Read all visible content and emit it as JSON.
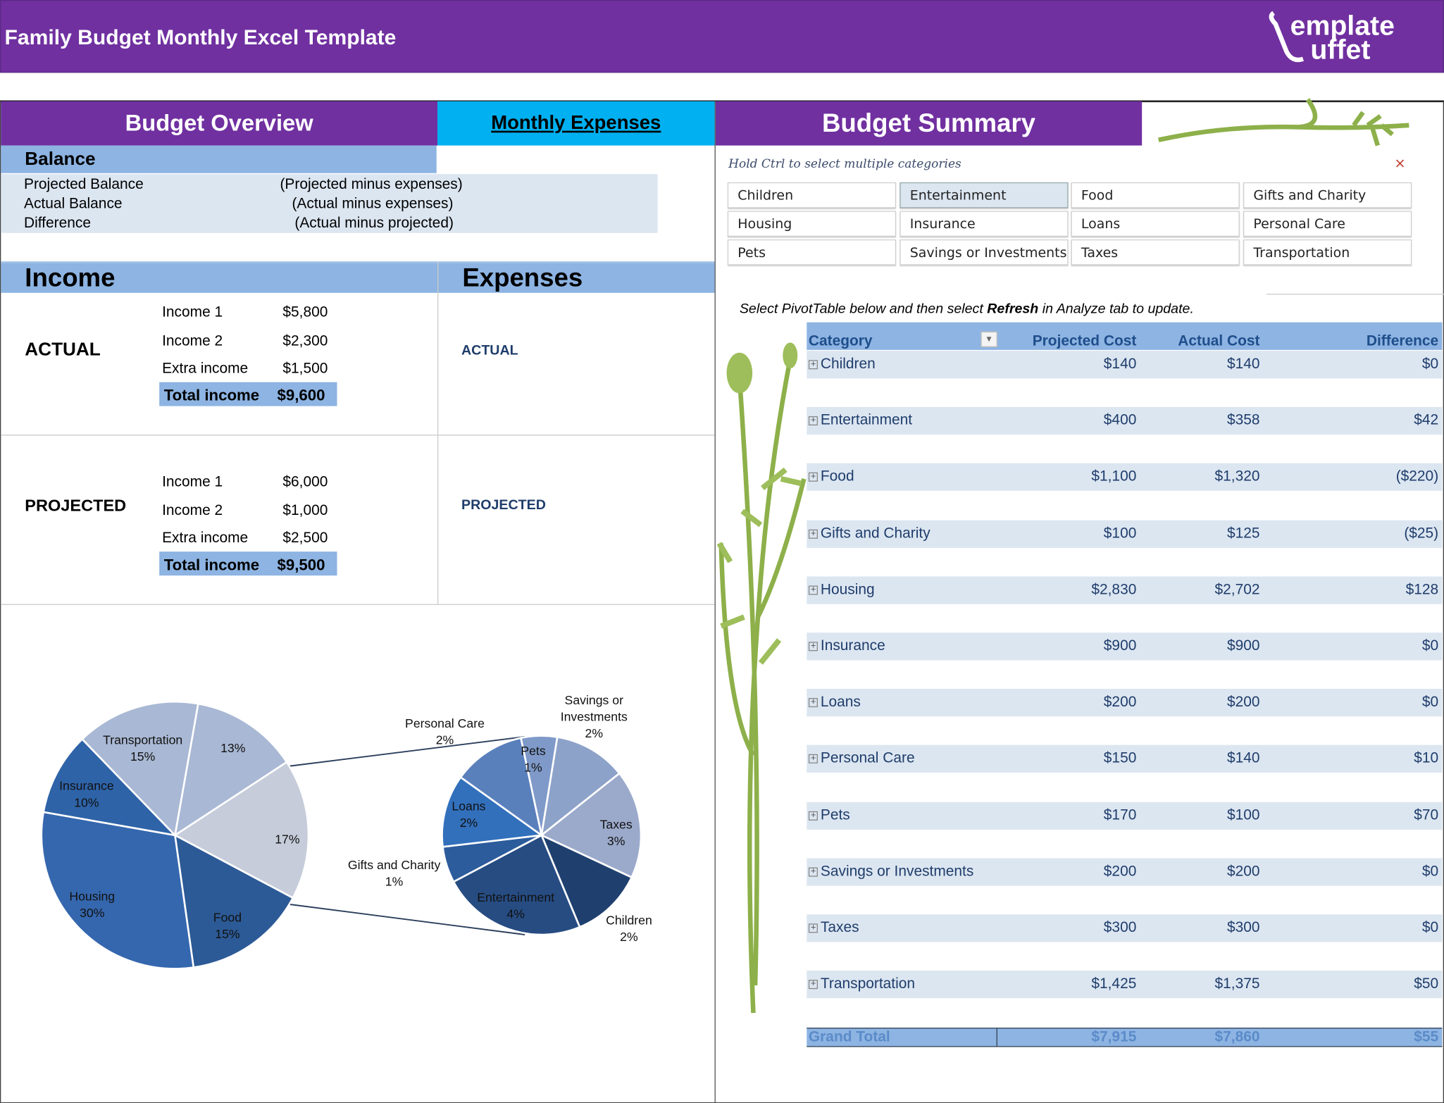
{
  "header": {
    "title": "Family Budget Monthly Excel Template",
    "logo_text": "TemplateBuffet"
  },
  "tabs": {
    "overview": "Budget Overview",
    "monthly": "Monthly Expenses",
    "summary": "Budget Summary"
  },
  "balance": {
    "heading": "Balance",
    "rows": [
      {
        "label": "Projected Balance",
        "note": "(Projected  minus expenses)"
      },
      {
        "label": "Actual Balance",
        "note": "(Actual  minus expenses)"
      },
      {
        "label": "Difference",
        "note": "(Actual minus projected)"
      }
    ]
  },
  "income": {
    "heading": "Income",
    "expenses_heading": "Expenses",
    "actual": {
      "label": "ACTUAL",
      "expenses_label": "ACTUAL",
      "items": [
        {
          "name": "Income 1",
          "value": "$5,800"
        },
        {
          "name": "Income 2",
          "value": "$2,300"
        },
        {
          "name": "Extra income",
          "value": "$1,500"
        }
      ],
      "total_label": "Total income",
      "total": "$9,600"
    },
    "projected": {
      "label": "PROJECTED",
      "expenses_label": "PROJECTED",
      "items": [
        {
          "name": "Income 1",
          "value": "$6,000"
        },
        {
          "name": "Income 2",
          "value": "$1,000"
        },
        {
          "name": "Extra income",
          "value": "$2,500"
        }
      ],
      "total_label": "Total income",
      "total": "$9,500"
    }
  },
  "slicer": {
    "hint": "Hold Ctrl to select multiple categories",
    "selected": "Entertainment",
    "items": [
      "Children",
      "Entertainment",
      "Food",
      "Gifts and Charity",
      "Housing",
      "Insurance",
      "Loans",
      "Personal Care",
      "Pets",
      "Savings or Investments",
      "Taxes",
      "Transportation"
    ]
  },
  "pivot": {
    "note_pre": "Select PivotTable below and then select ",
    "note_bold": "Refresh",
    "note_post": " in Analyze tab to update.",
    "headers": [
      "Category",
      "Projected Cost",
      "Actual Cost",
      "Difference"
    ],
    "rows": [
      [
        "Children",
        "$140",
        "$140",
        "$0"
      ],
      [
        "Entertainment",
        "$400",
        "$358",
        "$42"
      ],
      [
        "Food",
        "$1,100",
        "$1,320",
        "($220)"
      ],
      [
        "Gifts and Charity",
        "$100",
        "$125",
        "($25)"
      ],
      [
        "Housing",
        "$2,830",
        "$2,702",
        "$128"
      ],
      [
        "Insurance",
        "$900",
        "$900",
        "$0"
      ],
      [
        "Loans",
        "$200",
        "$200",
        "$0"
      ],
      [
        "Personal Care",
        "$150",
        "$140",
        "$10"
      ],
      [
        "Pets",
        "$170",
        "$100",
        "$70"
      ],
      [
        "Savings or Investments",
        "$200",
        "$200",
        "$0"
      ],
      [
        "Taxes",
        "$300",
        "$300",
        "$0"
      ],
      [
        "Transportation",
        "$1,425",
        "$1,375",
        "$50"
      ]
    ],
    "total": [
      "Grand Total",
      "$7,915",
      "$7,860",
      "$55"
    ]
  },
  "colors": {
    "purple": "#7030A0",
    "cyan": "#00B0F0",
    "light_blue": "#8DB4E2",
    "pale_blue": "#DCE6F1",
    "text_blue": "#1F3D6B"
  },
  "chart_data": {
    "type": "pie",
    "subtype": "pie-of-pie",
    "main": [
      {
        "label": "",
        "value": 13,
        "text": "13%"
      },
      {
        "label": "",
        "value": 17,
        "text": "17%"
      },
      {
        "label": "Food",
        "value": 15,
        "text": "15%"
      },
      {
        "label": "Housing",
        "value": 30,
        "text": "30%"
      },
      {
        "label": "Insurance",
        "value": 10,
        "text": "10%"
      },
      {
        "label": "Transportation",
        "value": 15,
        "text": "15%"
      }
    ],
    "secondary": [
      {
        "label": "Pets",
        "value": 1,
        "text": "1%"
      },
      {
        "label": "Savings or Investments",
        "value": 2,
        "text": "2%"
      },
      {
        "label": "Taxes",
        "value": 3,
        "text": "3%"
      },
      {
        "label": "Children",
        "value": 2,
        "text": "2%"
      },
      {
        "label": "Entertainment",
        "value": 4,
        "text": "4%"
      },
      {
        "label": "Gifts and Charity",
        "value": 1,
        "text": "1%"
      },
      {
        "label": "Loans",
        "value": 2,
        "text": "2%"
      },
      {
        "label": "Personal Care",
        "value": 2,
        "text": "2%"
      }
    ]
  }
}
